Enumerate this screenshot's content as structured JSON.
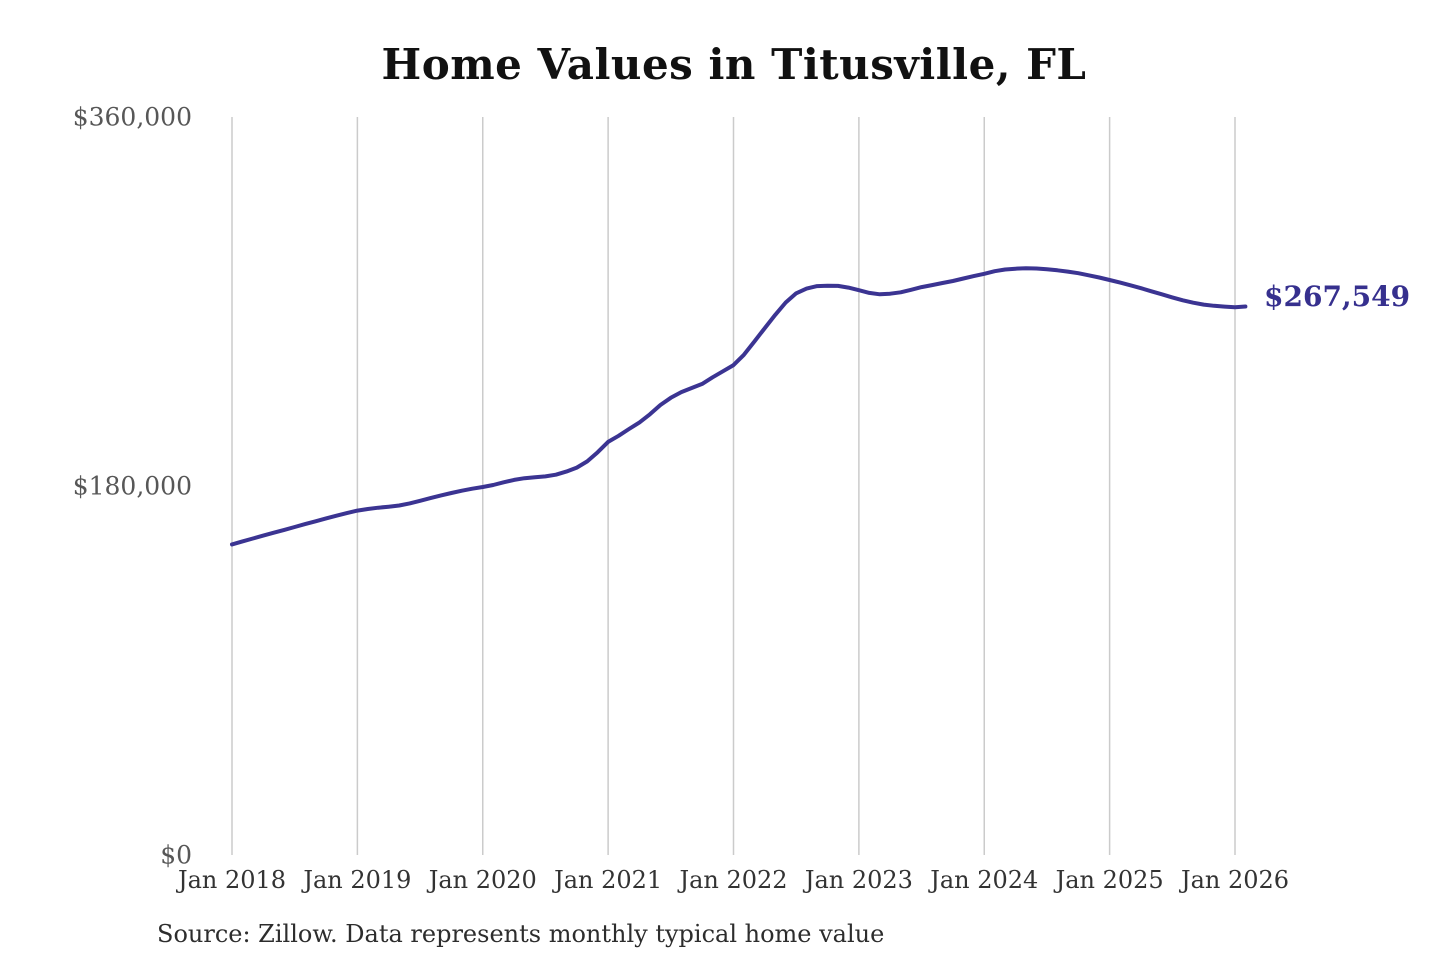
{
  "chart_data": {
    "type": "line",
    "title": "Home Values in Titusville, FL",
    "source_note": "Source: Zillow. Data represents monthly typical home value",
    "series_name": "Monthly typical home value",
    "unit": "USD",
    "end_label": "$267,549",
    "end_value": 267549,
    "ylim": [
      0,
      360000
    ],
    "grid": "vertical-only",
    "legend": "none",
    "line_color": "#3b3492",
    "end_label_color": "#36308e",
    "grid_color": "#cbcbcb",
    "title_color": "#111111",
    "y_label_color": "#575757",
    "x_label_color": "#333333",
    "y_ticks": [
      {
        "value": 0,
        "label": "$0"
      },
      {
        "value": 180000,
        "label": "$180,000"
      },
      {
        "value": 360000,
        "label": "$360,000"
      }
    ],
    "x_ticks": [
      "Jan 2018",
      "Jan 2019",
      "Jan 2020",
      "Jan 2021",
      "Jan 2022",
      "Jan 2023",
      "Jan 2024",
      "Jan 2025",
      "Jan 2026"
    ],
    "months": [
      "Jan 2018",
      "Feb 2018",
      "Mar 2018",
      "Apr 2018",
      "May 2018",
      "Jun 2018",
      "Jul 2018",
      "Aug 2018",
      "Sep 2018",
      "Oct 2018",
      "Nov 2018",
      "Dec 2018",
      "Jan 2019",
      "Feb 2019",
      "Mar 2019",
      "Apr 2019",
      "May 2019",
      "Jun 2019",
      "Jul 2019",
      "Aug 2019",
      "Sep 2019",
      "Oct 2019",
      "Nov 2019",
      "Dec 2019",
      "Jan 2020",
      "Feb 2020",
      "Mar 2020",
      "Apr 2020",
      "May 2020",
      "Jun 2020",
      "Jul 2020",
      "Aug 2020",
      "Sep 2020",
      "Oct 2020",
      "Nov 2020",
      "Dec 2020",
      "Jan 2021",
      "Feb 2021",
      "Mar 2021",
      "Apr 2021",
      "May 2021",
      "Jun 2021",
      "Jul 2021",
      "Aug 2021",
      "Sep 2021",
      "Oct 2021",
      "Nov 2021",
      "Dec 2021",
      "Jan 2022",
      "Feb 2022",
      "Mar 2022",
      "Apr 2022",
      "May 2022",
      "Jun 2022",
      "Jul 2022",
      "Aug 2022",
      "Sep 2022",
      "Oct 2022",
      "Nov 2022",
      "Dec 2022",
      "Jan 2023",
      "Feb 2023",
      "Mar 2023",
      "Apr 2023",
      "May 2023",
      "Jun 2023",
      "Jul 2023",
      "Aug 2023",
      "Sep 2023",
      "Oct 2023",
      "Nov 2023",
      "Dec 2023",
      "Jan 2024",
      "Feb 2024",
      "Mar 2024",
      "Apr 2024",
      "May 2024",
      "Jun 2024",
      "Jul 2024",
      "Aug 2024",
      "Sep 2024",
      "Oct 2024",
      "Nov 2024",
      "Dec 2024",
      "Jan 2025",
      "Feb 2025",
      "Mar 2025",
      "Apr 2025",
      "May 2025",
      "Jun 2025",
      "Jul 2025",
      "Aug 2025",
      "Sep 2025",
      "Oct 2025",
      "Nov 2025",
      "Dec 2025",
      "Jan 2026",
      "Feb 2026"
    ],
    "values": [
      151500,
      153000,
      154400,
      155800,
      157200,
      158600,
      160000,
      161400,
      162800,
      164200,
      165500,
      166800,
      168000,
      168800,
      169400,
      169900,
      170500,
      171500,
      172800,
      174100,
      175400,
      176600,
      177700,
      178700,
      179500,
      180500,
      181800,
      183000,
      183800,
      184300,
      184700,
      185500,
      187000,
      189000,
      192000,
      196500,
      201500,
      204500,
      207800,
      211000,
      215000,
      219500,
      223000,
      225800,
      227800,
      229800,
      233000,
      236000,
      239000,
      244000,
      250500,
      257000,
      263500,
      269500,
      274000,
      276300,
      277500,
      277700,
      277600,
      276800,
      275500,
      274200,
      273500,
      273800,
      274500,
      275700,
      277000,
      278000,
      279000,
      280000,
      281200,
      282400,
      283500,
      284800,
      285600,
      286000,
      286200,
      286100,
      285700,
      285200,
      284600,
      283800,
      282800,
      281700,
      280500,
      279200,
      277900,
      276500,
      275000,
      273500,
      272000,
      270600,
      269400,
      268500,
      267900,
      267500,
      267200,
      267549
    ]
  }
}
